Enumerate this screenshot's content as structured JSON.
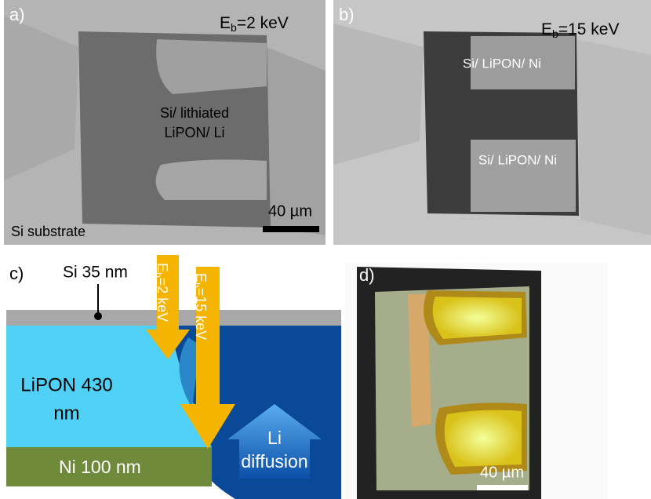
{
  "panel_a": {
    "label": "a)",
    "energy": {
      "symbol": "E",
      "sub": "b",
      "rest": "=2 keV"
    },
    "region": [
      "Si/ lithiated",
      "LiPON/ Li"
    ],
    "scale": "40 µm",
    "substrate": "Si substrate"
  },
  "panel_b": {
    "label": "b)",
    "energy": {
      "symbol": "E",
      "sub": "b",
      "rest": "=15 keV"
    },
    "region_top": "Si/ LiPON/ Ni",
    "region_bottom": "Si/ LiPON/ Ni"
  },
  "panel_c": {
    "label": "c)",
    "si_layer": "Si 35 nm",
    "arrow_low": {
      "symbol": "E",
      "sub": "b",
      "rest": "=2 keV"
    },
    "arrow_high": {
      "symbol": "E",
      "sub": "b",
      "rest": "=15 keV"
    },
    "lipon": [
      "LiPON 430",
      "nm"
    ],
    "li_diffusion": [
      "Li",
      "diffusion"
    ],
    "ni_layer": "Ni 100 nm"
  },
  "panel_d": {
    "label": "d)",
    "scale": "40 µm"
  }
}
